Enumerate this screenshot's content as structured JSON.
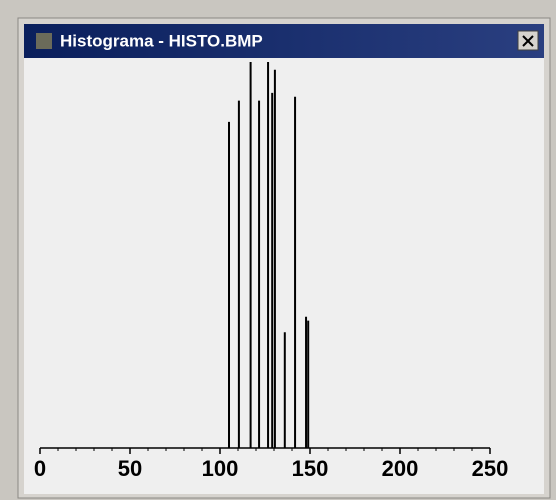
{
  "window_title": "Histograma - HISTO.BMP",
  "chart_data": {
    "type": "bar",
    "x": [
      105,
      110.5,
      117,
      121.7,
      126.7,
      129,
      130.5,
      136,
      141.7,
      147.8,
      149
    ],
    "values": [
      84.5,
      90,
      100,
      90,
      100,
      92,
      98,
      30,
      91,
      34,
      33
    ],
    "color": "#000000",
    "xlim": [
      0,
      250
    ],
    "xticks": [
      0,
      50,
      100,
      150,
      200,
      250
    ],
    "minor_tick_step": 10,
    "ylim": [
      0,
      100
    ]
  }
}
